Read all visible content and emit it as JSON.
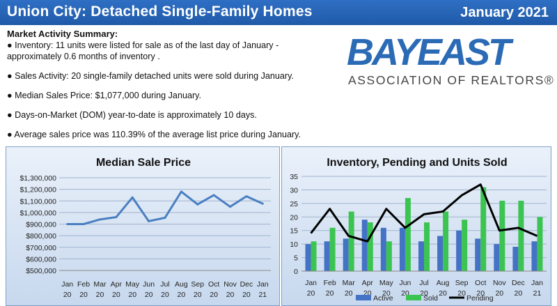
{
  "header": {
    "title": "Union City: Detached Single-Family Homes",
    "date": "January 2021"
  },
  "summary": {
    "title": "Market Activity Summary:",
    "items": [
      "● Inventory: 11 units were listed for sale as of the last day of January -",
      "approximately 0.6 months of inventory .",
      "● Sales Activity: 20 single-family detached units were sold during January.",
      "● Median Sales Price: $1,077,000 during January.",
      "● Days-on-Market (DOM) year-to-date is approximately 10 days.",
      "● Average sales price was 110.39% of the average list price during January."
    ]
  },
  "logo": {
    "brand": "BAYEAST",
    "sub": "ASSOCIATION OF REALTORS®"
  },
  "colors": {
    "header": "#2563b0",
    "line_price": "#4a7fc1",
    "active": "#4472c4",
    "sold": "#3cc452",
    "pending": "#000000"
  },
  "chart_data": [
    {
      "type": "line",
      "title": "Median Sale Price",
      "categories": [
        [
          "Jan",
          "20"
        ],
        [
          "Feb",
          "20"
        ],
        [
          "Mar",
          "20"
        ],
        [
          "Apr",
          "20"
        ],
        [
          "May",
          "20"
        ],
        [
          "Jun",
          "20"
        ],
        [
          "Jul",
          "20"
        ],
        [
          "Aug",
          "20"
        ],
        [
          "Sep",
          "20"
        ],
        [
          "Oct",
          "20"
        ],
        [
          "Nov",
          "20"
        ],
        [
          "Dec",
          "20"
        ],
        [
          "Jan",
          "21"
        ]
      ],
      "values": [
        900000,
        900000,
        940000,
        960000,
        1130000,
        925000,
        955000,
        1180000,
        1070000,
        1150000,
        1050000,
        1140000,
        1077000
      ],
      "ylim": [
        500000,
        1300000
      ],
      "yticks": [
        "$500,000",
        "$600,000",
        "$700,000",
        "$800,000",
        "$900,000",
        "$1,000,000",
        "$1,100,000",
        "$1,200,000",
        "$1,300,000"
      ],
      "grid": true
    },
    {
      "type": "bar",
      "title": "Inventory, Pending and Units Sold",
      "categories": [
        [
          "Jan",
          "20"
        ],
        [
          "Feb",
          "20"
        ],
        [
          "Mar",
          "20"
        ],
        [
          "Apr",
          "20"
        ],
        [
          "May",
          "20"
        ],
        [
          "Jun",
          "20"
        ],
        [
          "Jul",
          "20"
        ],
        [
          "Aug",
          "20"
        ],
        [
          "Sep",
          "20"
        ],
        [
          "Oct",
          "20"
        ],
        [
          "Nov",
          "20"
        ],
        [
          "Dec",
          "20"
        ],
        [
          "Jan",
          "21"
        ]
      ],
      "series": [
        {
          "name": "Active",
          "type": "bar",
          "values": [
            10,
            11,
            12,
            19,
            16,
            16,
            11,
            13,
            15,
            12,
            10,
            9,
            11
          ]
        },
        {
          "name": "Sold",
          "type": "bar",
          "values": [
            11,
            16,
            22,
            18,
            11,
            27,
            18,
            22,
            19,
            31,
            26,
            26,
            20
          ]
        },
        {
          "name": "Pending",
          "type": "line",
          "values": [
            14,
            23,
            13,
            11,
            23,
            16,
            21,
            22,
            28,
            32,
            15,
            16,
            13
          ]
        }
      ],
      "ylim": [
        0,
        35
      ],
      "yticks": [
        "0",
        "5",
        "10",
        "15",
        "20",
        "25",
        "30",
        "35"
      ],
      "grid": true,
      "legend": "bottom"
    }
  ]
}
